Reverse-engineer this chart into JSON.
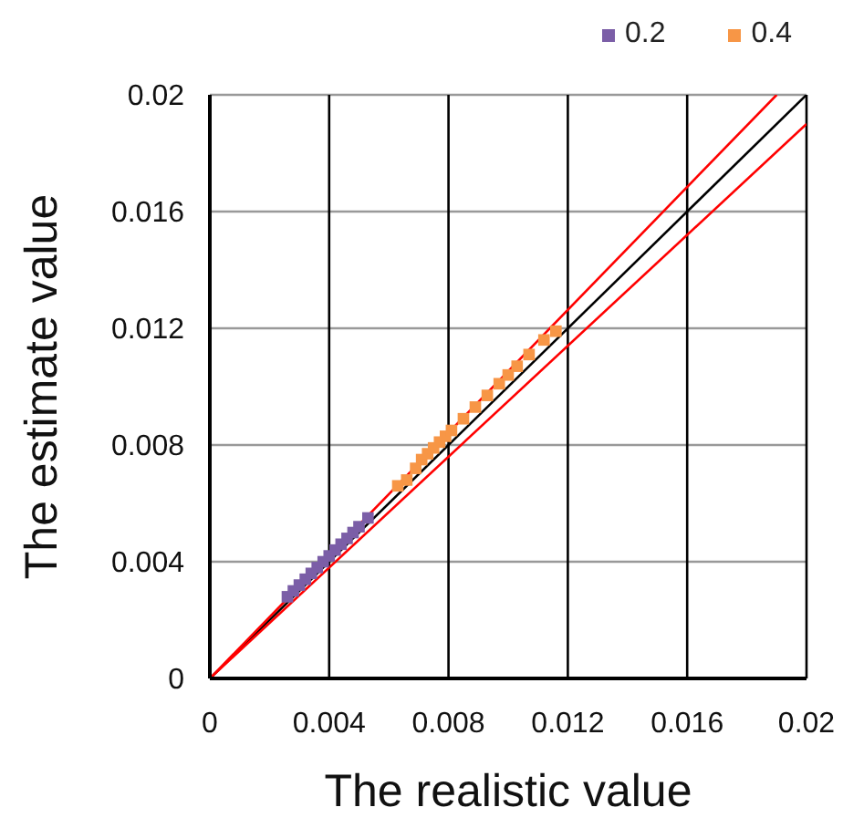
{
  "chart_data": {
    "type": "scatter",
    "xlabel": "The realistic value",
    "ylabel": "The estimate value",
    "xlim": [
      0,
      0.02
    ],
    "ylim": [
      0,
      0.02
    ],
    "xticks": [
      0,
      0.004,
      0.008,
      0.012,
      0.016,
      0.02
    ],
    "yticks": [
      0,
      0.004,
      0.008,
      0.012,
      0.016,
      0.02
    ],
    "grid": true,
    "legend": "top right",
    "marker": "square",
    "series": [
      {
        "name": "0.2",
        "color": "#7b5ea7",
        "x": [
          0.0026,
          0.0028,
          0.003,
          0.0032,
          0.0034,
          0.0036,
          0.0038,
          0.004,
          0.0042,
          0.0044,
          0.0046,
          0.0048,
          0.005,
          0.0053
        ],
        "values": [
          0.0028,
          0.003,
          0.0032,
          0.0034,
          0.0036,
          0.0038,
          0.004,
          0.0042,
          0.0044,
          0.0046,
          0.0048,
          0.005,
          0.0052,
          0.0055
        ]
      },
      {
        "name": "0.4",
        "color": "#f79646",
        "x": [
          0.0063,
          0.0066,
          0.0069,
          0.0071,
          0.0073,
          0.0075,
          0.0077,
          0.0079,
          0.0081,
          0.0085,
          0.0089,
          0.0093,
          0.0097,
          0.01,
          0.0103,
          0.0107,
          0.0112,
          0.0116
        ],
        "values": [
          0.0066,
          0.0068,
          0.0072,
          0.0075,
          0.0077,
          0.0079,
          0.0081,
          0.0083,
          0.0085,
          0.0089,
          0.0093,
          0.0097,
          0.0101,
          0.0104,
          0.0107,
          0.0111,
          0.0116,
          0.0119
        ]
      },
      {
        "type": "line",
        "color": "#000000",
        "line_style": "solid",
        "marker": "none",
        "x": [
          0,
          0.02
        ],
        "values": [
          0,
          0.02
        ]
      },
      {
        "type": "line",
        "color": "#ff0000",
        "line_style": "solid",
        "marker": "none",
        "x": [
          0,
          0.019
        ],
        "values": [
          0,
          0.02
        ]
      },
      {
        "type": "line",
        "color": "#ff0000",
        "line_style": "solid",
        "marker": "none",
        "x": [
          0,
          0.02
        ],
        "values": [
          0,
          0.019
        ]
      }
    ]
  }
}
